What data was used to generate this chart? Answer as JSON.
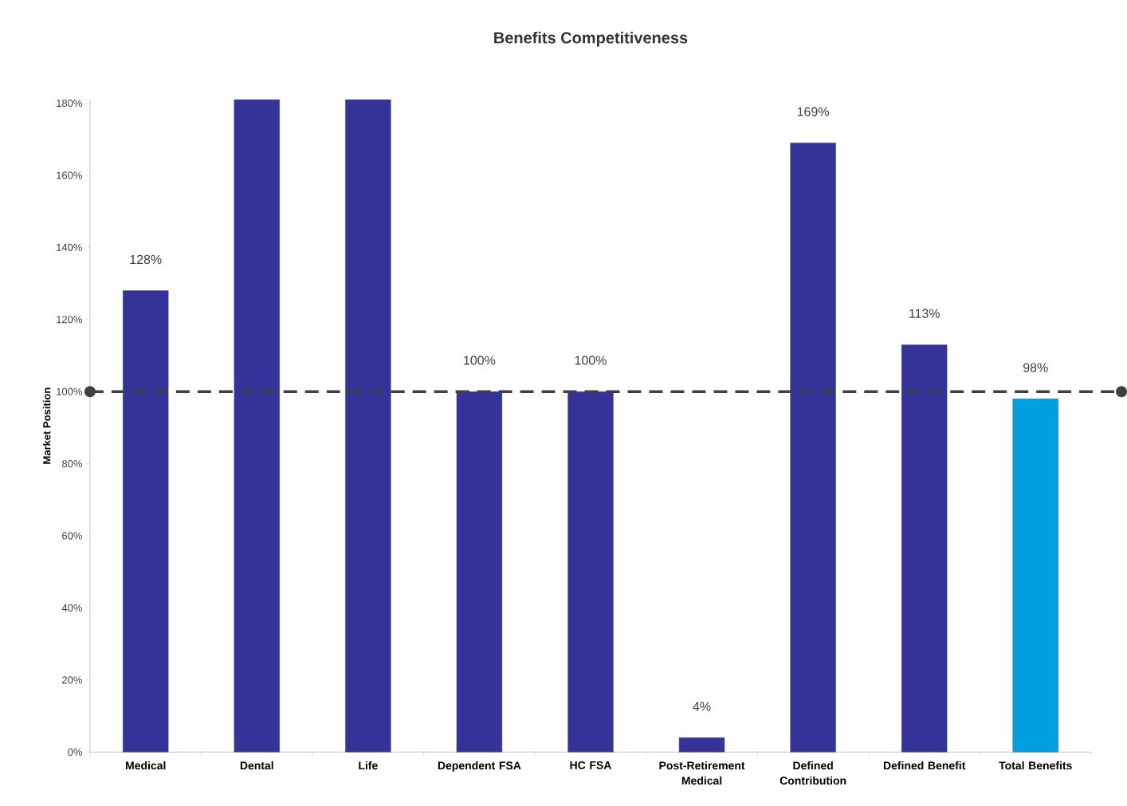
{
  "chart_data": {
    "type": "bar",
    "title": "Benefits Competitiveness",
    "ylabel": "Market Position",
    "categories": [
      "Medical",
      "Dental",
      "Life",
      "Dependent FSA",
      "HC FSA",
      "Post-Retirement Medical",
      "Defined Contribution",
      "Defined Benefit",
      "Total Benefits"
    ],
    "values": [
      128,
      181,
      181,
      100,
      100,
      4,
      169,
      113,
      98
    ],
    "colors": [
      "#333399",
      "#333399",
      "#333399",
      "#333399",
      "#333399",
      "#333399",
      "#333399",
      "#333399",
      "#00a0e0"
    ],
    "value_labels": [
      "128%",
      null,
      null,
      "100%",
      "100%",
      "4%",
      "169%",
      "113%",
      "98%"
    ],
    "ylim": [
      0,
      181
    ],
    "yticks": [
      {
        "value": 0,
        "label": "0%"
      },
      {
        "value": 20,
        "label": "20%"
      },
      {
        "value": 40,
        "label": "40%"
      },
      {
        "value": 60,
        "label": "60%"
      },
      {
        "value": 80,
        "label": "80%"
      },
      {
        "value": 100,
        "label": "100%"
      },
      {
        "value": 120,
        "label": "120%"
      },
      {
        "value": 140,
        "label": "140%"
      },
      {
        "value": 160,
        "label": "160%"
      },
      {
        "value": 180,
        "label": "180%"
      }
    ],
    "ref_lines": [
      {
        "axis": "y",
        "value": 100,
        "color": "#404040",
        "line_style": "dashed"
      }
    ],
    "grid": false
  }
}
